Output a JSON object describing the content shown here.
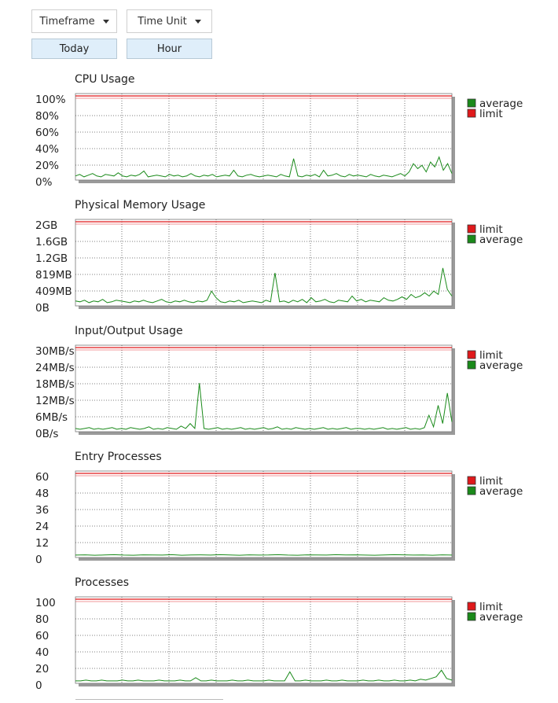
{
  "controls": {
    "timeframe_label": "Timeframe",
    "time_unit_label": "Time Unit",
    "timeframe_value": "Today",
    "time_unit_value": "Hour"
  },
  "colors": {
    "average": "#1a8a1a",
    "limit": "#e0191b",
    "grid": "#555555",
    "button_bg": "#dfeefa"
  },
  "chart_data": [
    {
      "type": "line",
      "title": "CPU Usage",
      "ytick_labels": [
        "100%",
        "80%",
        "60%",
        "40%",
        "20%",
        "0%"
      ],
      "ylim": [
        0,
        100
      ],
      "grid": true,
      "legend": [
        "average",
        "limit"
      ],
      "series": [
        {
          "name": "limit",
          "values": [
            100
          ]
        },
        {
          "name": "average",
          "values": [
            3,
            5,
            2,
            4,
            6,
            3,
            2,
            5,
            4,
            3,
            7,
            3,
            2,
            4,
            3,
            5,
            9,
            2,
            3,
            4,
            3,
            2,
            5,
            3,
            4,
            2,
            3,
            6,
            3,
            2,
            4,
            3,
            5,
            2,
            3,
            4,
            3,
            10,
            3,
            2,
            4,
            5,
            3,
            2,
            3,
            4,
            3,
            2,
            5,
            3,
            2,
            24,
            3,
            2,
            4,
            3,
            5,
            2,
            10,
            3,
            4,
            6,
            3,
            2,
            5,
            3,
            4,
            3,
            2,
            5,
            3,
            2,
            4,
            3,
            2,
            4,
            6,
            3,
            8,
            18,
            12,
            16,
            8,
            20,
            14,
            26,
            10,
            18,
            6
          ]
        }
      ]
    },
    {
      "type": "line",
      "title": "Physical Memory Usage",
      "ytick_labels": [
        "2GB",
        "1.6GB",
        "1.2GB",
        "819MB",
        "409MB",
        "0B"
      ],
      "ylim": [
        0,
        100
      ],
      "grid": true,
      "legend": [
        "limit",
        "average"
      ],
      "series": [
        {
          "name": "limit",
          "values": [
            100
          ]
        },
        {
          "name": "average",
          "values": [
            4,
            3,
            5,
            2,
            4,
            3,
            6,
            2,
            3,
            5,
            4,
            3,
            2,
            4,
            3,
            5,
            3,
            2,
            4,
            6,
            3,
            2,
            4,
            3,
            5,
            3,
            2,
            4,
            3,
            5,
            16,
            8,
            3,
            2,
            4,
            3,
            5,
            2,
            3,
            4,
            3,
            2,
            5,
            3,
            38,
            3,
            4,
            2,
            5,
            3,
            6,
            2,
            8,
            3,
            4,
            6,
            3,
            2,
            5,
            4,
            3,
            10,
            4,
            6,
            3,
            5,
            4,
            3,
            8,
            5,
            4,
            6,
            9,
            6,
            12,
            8,
            10,
            14,
            10,
            16,
            12,
            44,
            18,
            10
          ]
        }
      ]
    },
    {
      "type": "line",
      "title": "Input/Output Usage",
      "ytick_labels": [
        "30MB/s",
        "24MB/s",
        "18MB/s",
        "12MB/s",
        "6MB/s",
        "0B/s"
      ],
      "ylim": [
        0,
        100
      ],
      "grid": true,
      "legend": [
        "limit",
        "average"
      ],
      "series": [
        {
          "name": "limit",
          "values": [
            100
          ]
        },
        {
          "name": "average",
          "values": [
            2,
            1,
            2,
            3,
            1,
            2,
            1,
            2,
            3,
            1,
            2,
            1,
            3,
            2,
            1,
            2,
            4,
            1,
            2,
            1,
            3,
            2,
            1,
            5,
            2,
            8,
            2,
            57,
            2,
            1,
            2,
            3,
            1,
            2,
            1,
            2,
            3,
            1,
            2,
            1,
            2,
            3,
            1,
            2,
            4,
            1,
            2,
            1,
            3,
            2,
            1,
            2,
            1,
            2,
            3,
            1,
            2,
            1,
            2,
            3,
            1,
            2,
            2,
            1,
            2,
            1,
            2,
            3,
            1,
            2,
            1,
            2,
            3,
            1,
            2,
            1,
            3,
            18,
            4,
            30,
            8,
            45,
            10
          ]
        }
      ]
    },
    {
      "type": "line",
      "title": "Entry Processes",
      "ytick_labels": [
        "60",
        "48",
        "36",
        "24",
        "12",
        "0"
      ],
      "ylim": [
        0,
        60
      ],
      "grid": true,
      "legend": [
        "limit",
        "average"
      ],
      "series": [
        {
          "name": "limit",
          "values": [
            60
          ]
        },
        {
          "name": "average",
          "values": [
            0.6,
            0.8,
            0.5,
            0.7,
            0.9,
            0.6,
            0.5,
            0.8,
            0.7,
            0.6,
            0.9,
            0.5,
            0.7,
            0.8,
            0.6,
            0.9,
            0.7,
            0.5,
            0.8,
            0.6,
            0.7,
            0.9,
            0.6,
            0.5,
            0.8,
            0.7,
            0.6,
            0.9,
            0.7,
            0.8,
            0.6,
            0.5,
            0.7,
            0.9,
            0.8,
            0.6,
            0.7,
            0.5,
            0.8,
            0.6
          ]
        }
      ]
    },
    {
      "type": "line",
      "title": "Processes",
      "ytick_labels": [
        "100",
        "80",
        "60",
        "40",
        "20",
        "0"
      ],
      "ylim": [
        0,
        100
      ],
      "grid": true,
      "legend": [
        "limit",
        "average"
      ],
      "series": [
        {
          "name": "limit",
          "values": [
            100
          ]
        },
        {
          "name": "average",
          "values": [
            1,
            1,
            2,
            1,
            1,
            2,
            1,
            1,
            1,
            2,
            1,
            1,
            2,
            1,
            1,
            1,
            2,
            1,
            1,
            1,
            2,
            1,
            1,
            5,
            1,
            1,
            2,
            1,
            1,
            1,
            2,
            1,
            1,
            2,
            1,
            1,
            1,
            2,
            1,
            1,
            1,
            12,
            1,
            1,
            2,
            1,
            1,
            1,
            2,
            1,
            1,
            2,
            1,
            1,
            1,
            2,
            1,
            1,
            2,
            1,
            1,
            2,
            1,
            1,
            2,
            1,
            3,
            2,
            4,
            6,
            14,
            4,
            2
          ]
        }
      ]
    }
  ]
}
